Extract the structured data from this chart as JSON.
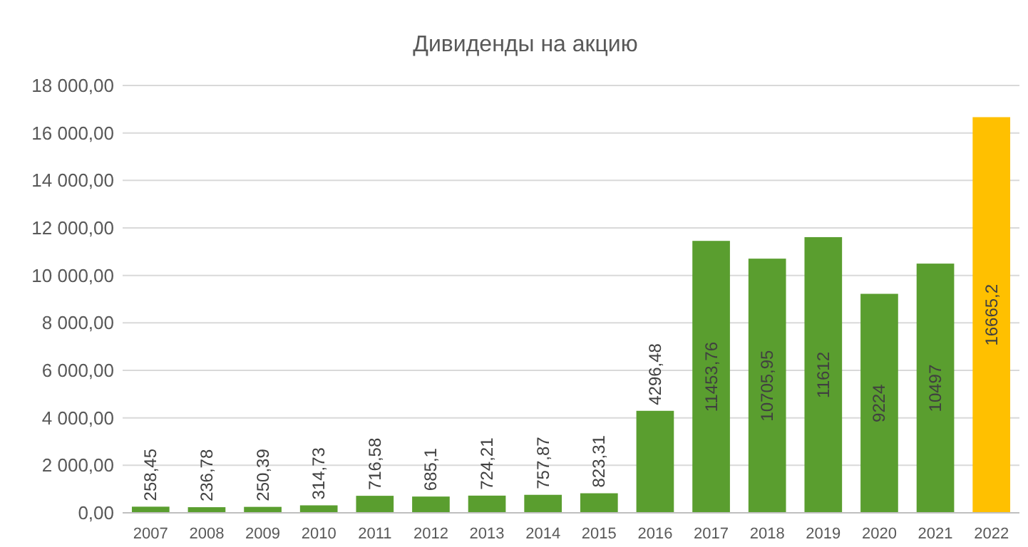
{
  "chart_data": {
    "type": "bar",
    "title": "Дивиденды на акцию",
    "categories": [
      "2007",
      "2008",
      "2009",
      "2010",
      "2011",
      "2012",
      "2013",
      "2014",
      "2015",
      "2016",
      "2017",
      "2018",
      "2019",
      "2020",
      "2021",
      "2022"
    ],
    "values": [
      258.45,
      236.78,
      250.39,
      314.73,
      716.58,
      685.1,
      724.21,
      757.87,
      823.31,
      4296.48,
      11453.76,
      10705.95,
      11612,
      9224,
      10497,
      16665.2
    ],
    "value_labels": [
      "258,45",
      "236,78",
      "250,39",
      "314,73",
      "716,58",
      "685,1",
      "724,21",
      "757,87",
      "823,31",
      "4296,48",
      "11453,76",
      "10705,95",
      "11612",
      "9224",
      "10497",
      "16665,2"
    ],
    "colors": [
      "#5a9e2f",
      "#5a9e2f",
      "#5a9e2f",
      "#5a9e2f",
      "#5a9e2f",
      "#5a9e2f",
      "#5a9e2f",
      "#5a9e2f",
      "#5a9e2f",
      "#5a9e2f",
      "#5a9e2f",
      "#5a9e2f",
      "#5a9e2f",
      "#5a9e2f",
      "#5a9e2f",
      "#ffc000"
    ],
    "ylim": [
      0,
      18000
    ],
    "yticks": [
      {
        "value": 0,
        "label": "0,00"
      },
      {
        "value": 2000,
        "label": "2 000,00"
      },
      {
        "value": 4000,
        "label": "4 000,00"
      },
      {
        "value": 6000,
        "label": "6 000,00"
      },
      {
        "value": 8000,
        "label": "8 000,00"
      },
      {
        "value": 10000,
        "label": "10 000,00"
      },
      {
        "value": 12000,
        "label": "12 000,00"
      },
      {
        "value": 14000,
        "label": "14 000,00"
      },
      {
        "value": 16000,
        "label": "16 000,00"
      },
      {
        "value": 18000,
        "label": "18 000,00"
      }
    ],
    "grid": "y"
  }
}
